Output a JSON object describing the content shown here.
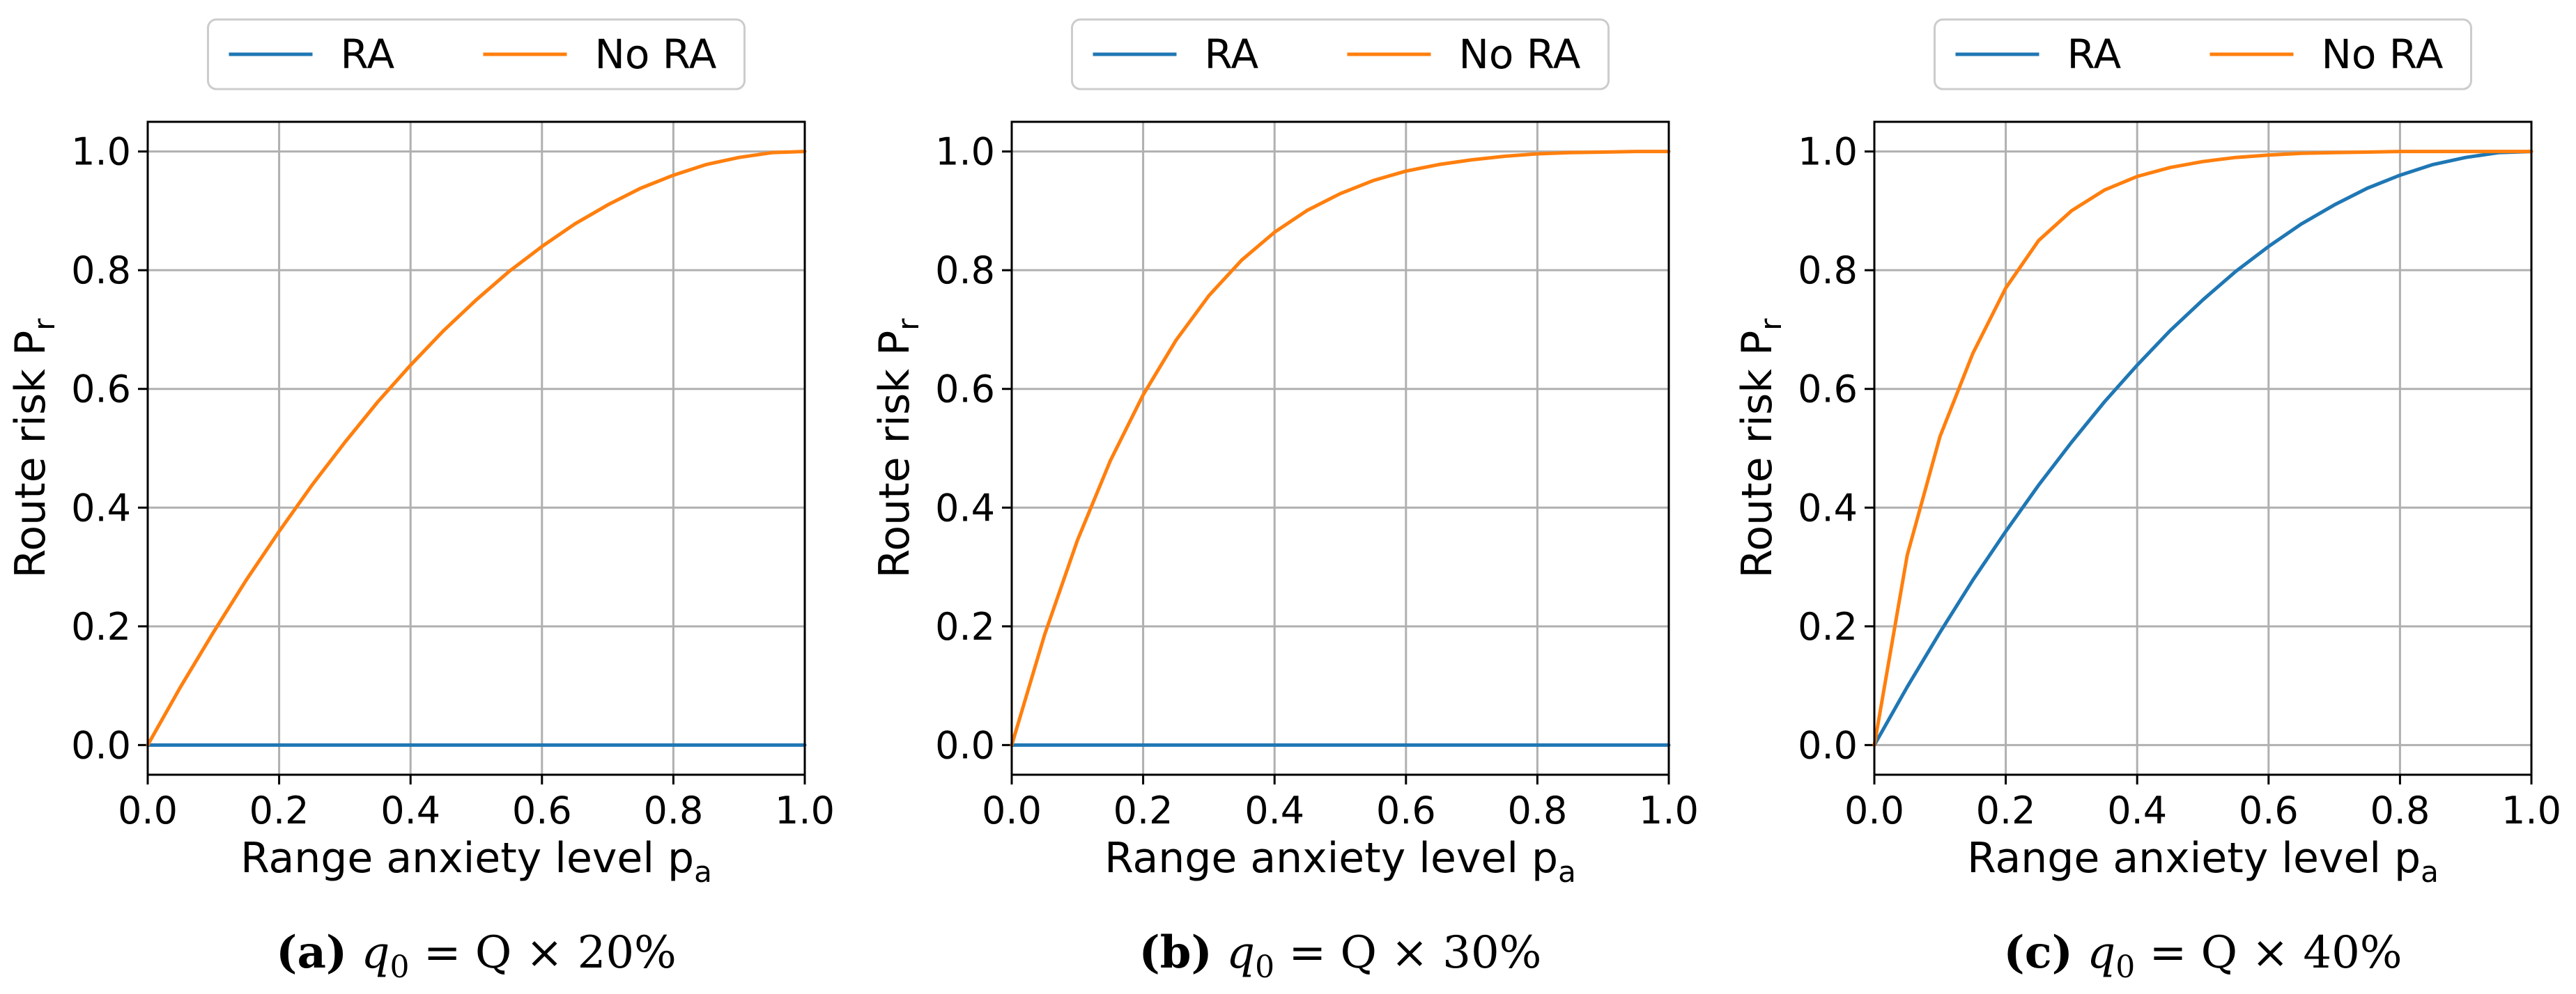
{
  "colors": {
    "ra": "#1f77b4",
    "no_ra": "#ff7f0e"
  },
  "chart_data": [
    {
      "type": "line",
      "panel_label": "(a)",
      "caption_prefix": "q",
      "caption_sub": "0",
      "caption_mid": " = Q × ",
      "caption_pct": "20%",
      "xlabel": "Range anxiety level p",
      "xlabel_sub": "a",
      "ylabel": "Route risk P",
      "ylabel_sub": "r",
      "xlim": [
        0,
        1
      ],
      "ylim": [
        -0.05,
        1.05
      ],
      "xticks": [
        "0.0",
        "0.2",
        "0.4",
        "0.6",
        "0.8",
        "1.0"
      ],
      "yticks": [
        "0.0",
        "0.2",
        "0.4",
        "0.6",
        "0.8",
        "1.0"
      ],
      "grid": true,
      "legend": [
        "RA",
        "No RA"
      ],
      "legend_position": "above",
      "x": [
        0,
        0.05,
        0.1,
        0.15,
        0.2,
        0.25,
        0.3,
        0.35,
        0.4,
        0.45,
        0.5,
        0.55,
        0.6,
        0.65,
        0.7,
        0.75,
        0.8,
        0.85,
        0.9,
        0.95,
        1.0
      ],
      "series": [
        {
          "name": "RA",
          "values": [
            0,
            0,
            0,
            0,
            0,
            0,
            0,
            0,
            0,
            0,
            0,
            0,
            0,
            0,
            0,
            0,
            0,
            0,
            0,
            0,
            0
          ]
        },
        {
          "name": "No RA",
          "values": [
            0,
            0.098,
            0.19,
            0.278,
            0.36,
            0.438,
            0.51,
            0.578,
            0.64,
            0.698,
            0.75,
            0.798,
            0.84,
            0.878,
            0.91,
            0.938,
            0.96,
            0.978,
            0.99,
            0.998,
            1.0
          ]
        }
      ]
    },
    {
      "type": "line",
      "panel_label": "(b)",
      "caption_prefix": "q",
      "caption_sub": "0",
      "caption_mid": " = Q × ",
      "caption_pct": "30%",
      "xlabel": "Range anxiety level p",
      "xlabel_sub": "a",
      "ylabel": "Route risk P",
      "ylabel_sub": "r",
      "xlim": [
        0,
        1
      ],
      "ylim": [
        -0.05,
        1.05
      ],
      "xticks": [
        "0.0",
        "0.2",
        "0.4",
        "0.6",
        "0.8",
        "1.0"
      ],
      "yticks": [
        "0.0",
        "0.2",
        "0.4",
        "0.6",
        "0.8",
        "1.0"
      ],
      "grid": true,
      "legend": [
        "RA",
        "No RA"
      ],
      "legend_position": "above",
      "x": [
        0,
        0.05,
        0.1,
        0.15,
        0.2,
        0.25,
        0.3,
        0.35,
        0.4,
        0.45,
        0.5,
        0.55,
        0.6,
        0.65,
        0.7,
        0.75,
        0.8,
        0.85,
        0.9,
        0.95,
        1.0
      ],
      "series": [
        {
          "name": "RA",
          "values": [
            0,
            0,
            0,
            0,
            0,
            0,
            0,
            0,
            0,
            0,
            0,
            0,
            0,
            0,
            0,
            0,
            0,
            0,
            0,
            0,
            0
          ]
        },
        {
          "name": "No RA",
          "values": [
            0,
            0.186,
            0.345,
            0.479,
            0.59,
            0.682,
            0.757,
            0.817,
            0.864,
            0.901,
            0.929,
            0.951,
            0.967,
            0.978,
            0.986,
            0.992,
            0.996,
            0.998,
            0.999,
            1.0,
            1.0
          ]
        }
      ]
    },
    {
      "type": "line",
      "panel_label": "(c)",
      "caption_prefix": "q",
      "caption_sub": "0",
      "caption_mid": " = Q × ",
      "caption_pct": "40%",
      "xlabel": "Range anxiety level p",
      "xlabel_sub": "a",
      "ylabel": "Route risk P",
      "ylabel_sub": "r",
      "xlim": [
        0,
        1
      ],
      "ylim": [
        -0.05,
        1.05
      ],
      "xticks": [
        "0.0",
        "0.2",
        "0.4",
        "0.6",
        "0.8",
        "1.0"
      ],
      "yticks": [
        "0.0",
        "0.2",
        "0.4",
        "0.6",
        "0.8",
        "1.0"
      ],
      "grid": true,
      "legend": [
        "RA",
        "No RA"
      ],
      "legend_position": "above",
      "x": [
        0,
        0.05,
        0.1,
        0.15,
        0.2,
        0.25,
        0.3,
        0.35,
        0.4,
        0.45,
        0.5,
        0.55,
        0.6,
        0.65,
        0.7,
        0.75,
        0.8,
        0.85,
        0.9,
        0.95,
        1.0
      ],
      "series": [
        {
          "name": "RA",
          "values": [
            0,
            0.098,
            0.19,
            0.278,
            0.36,
            0.438,
            0.51,
            0.578,
            0.64,
            0.698,
            0.75,
            0.798,
            0.84,
            0.878,
            0.91,
            0.938,
            0.96,
            0.978,
            0.99,
            0.998,
            1.0
          ]
        },
        {
          "name": "No RA",
          "values": [
            0,
            0.32,
            0.52,
            0.66,
            0.77,
            0.85,
            0.9,
            0.935,
            0.958,
            0.973,
            0.983,
            0.99,
            0.994,
            0.997,
            0.998,
            0.999,
            1.0,
            1.0,
            1.0,
            1.0,
            1.0
          ]
        }
      ]
    }
  ]
}
